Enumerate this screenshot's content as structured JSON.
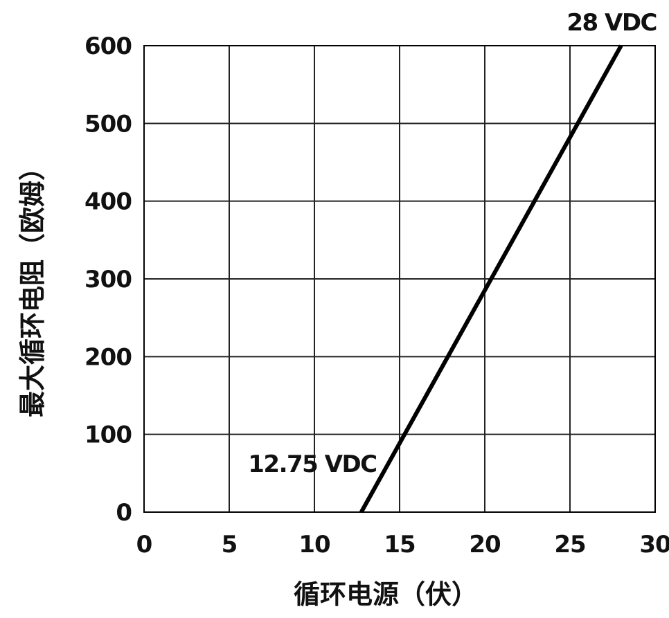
{
  "chart_data": {
    "type": "line",
    "title": "",
    "xlabel": "循环电源（伏）",
    "ylabel": "最大循环电阻（欧姆）",
    "xlim": [
      0,
      30
    ],
    "ylim": [
      0,
      600
    ],
    "xticks": [
      0,
      5,
      10,
      15,
      20,
      25,
      30
    ],
    "yticks": [
      0,
      100,
      200,
      300,
      400,
      500,
      600
    ],
    "xtick_labels": [
      "0",
      "5",
      "10",
      "15",
      "20",
      "25",
      "30"
    ],
    "ytick_labels": [
      "0",
      "100",
      "200",
      "300",
      "400",
      "500",
      "600"
    ],
    "grid": true,
    "series": [
      {
        "x": [
          12.75,
          28
        ],
        "y": [
          0,
          600
        ],
        "color": "#000000"
      }
    ],
    "annotations": [
      {
        "text": "12.75 VDC",
        "x": 12.75,
        "y": 0
      },
      {
        "text": "28 VDC",
        "x": 28,
        "y": 600
      }
    ]
  }
}
